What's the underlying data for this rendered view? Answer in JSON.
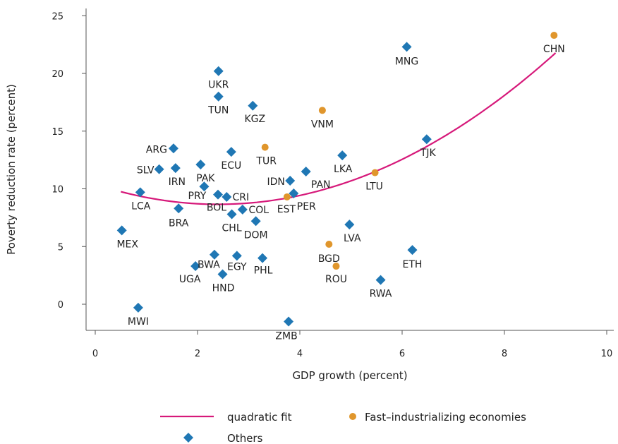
{
  "chart_data": {
    "type": "scatter",
    "xlabel": "GDP growth (percent)",
    "ylabel": "Poverty reduction rate (percent)",
    "xlim": [
      -0.2,
      10.1
    ],
    "ylim": [
      -2.2,
      25.5
    ],
    "xticks": [
      0,
      2,
      4,
      6,
      8,
      10
    ],
    "yticks": [
      0,
      5,
      10,
      15,
      20,
      25
    ],
    "grid": false,
    "legend_position": "bottom",
    "colors": {
      "fit": "#d6197a",
      "fast": "#e0962c",
      "others": "#1f77b4"
    },
    "fit": {
      "name": "quadratic fit",
      "coefficients": {
        "a": 0.3015,
        "b": -1.45,
        "c": 10.4
      },
      "x_range": [
        0.5,
        9.0
      ]
    },
    "series": [
      {
        "name": "Fast–industrializing economies",
        "marker": "circle",
        "points": [
          {
            "label": "CHN",
            "x": 8.97,
            "y": 23.3
          },
          {
            "label": "VNM",
            "x": 4.44,
            "y": 16.8
          },
          {
            "label": "TUR",
            "x": 3.32,
            "y": 13.6
          },
          {
            "label": "LTU",
            "x": 5.47,
            "y": 11.4
          },
          {
            "label": "EST",
            "x": 3.75,
            "y": 9.3
          },
          {
            "label": "BGD",
            "x": 4.57,
            "y": 5.2
          },
          {
            "label": "ROU",
            "x": 4.71,
            "y": 3.3
          }
        ]
      },
      {
        "name": "Others",
        "marker": "diamond",
        "points": [
          {
            "label": "MNG",
            "x": 6.09,
            "y": 22.3
          },
          {
            "label": "UKR",
            "x": 2.41,
            "y": 20.2
          },
          {
            "label": "TUN",
            "x": 2.41,
            "y": 18.0
          },
          {
            "label": "KGZ",
            "x": 3.08,
            "y": 17.2
          },
          {
            "label": "TJK",
            "x": 6.48,
            "y": 14.3
          },
          {
            "label": "ARG",
            "x": 1.53,
            "y": 13.5
          },
          {
            "label": "ECU",
            "x": 2.66,
            "y": 13.2
          },
          {
            "label": "LKA",
            "x": 4.83,
            "y": 12.9
          },
          {
            "label": "PAK",
            "x": 2.06,
            "y": 12.1
          },
          {
            "label": "SLV",
            "x": 1.25,
            "y": 11.7
          },
          {
            "label": "IRN",
            "x": 1.57,
            "y": 11.8
          },
          {
            "label": "PAN",
            "x": 4.12,
            "y": 11.5
          },
          {
            "label": "IDN",
            "x": 3.81,
            "y": 10.7
          },
          {
            "label": "PRY",
            "x": 2.13,
            "y": 10.2
          },
          {
            "label": "LCA",
            "x": 0.88,
            "y": 9.7
          },
          {
            "label": "PER",
            "x": 3.88,
            "y": 9.6
          },
          {
            "label": "BOL",
            "x": 2.4,
            "y": 9.5
          },
          {
            "label": "CRI",
            "x": 2.57,
            "y": 9.3
          },
          {
            "label": "BRA",
            "x": 1.63,
            "y": 8.3
          },
          {
            "label": "COL",
            "x": 2.88,
            "y": 8.2
          },
          {
            "label": "CHL",
            "x": 2.67,
            "y": 7.8
          },
          {
            "label": "DOM",
            "x": 3.14,
            "y": 7.2
          },
          {
            "label": "LVA",
            "x": 4.97,
            "y": 6.9
          },
          {
            "label": "MEX",
            "x": 0.52,
            "y": 6.4
          },
          {
            "label": "ETH",
            "x": 6.2,
            "y": 4.7
          },
          {
            "label": "BWA",
            "x": 2.33,
            "y": 4.3
          },
          {
            "label": "EGY",
            "x": 2.77,
            "y": 4.2
          },
          {
            "label": "PHL",
            "x": 3.27,
            "y": 4.0
          },
          {
            "label": "UGA",
            "x": 1.96,
            "y": 3.3
          },
          {
            "label": "HND",
            "x": 2.49,
            "y": 2.6
          },
          {
            "label": "RWA",
            "x": 5.58,
            "y": 2.1
          },
          {
            "label": "MWI",
            "x": 0.84,
            "y": -0.3
          },
          {
            "label": "ZMB",
            "x": 3.78,
            "y": -1.5
          }
        ]
      }
    ]
  },
  "legend": {
    "fit_label": "quadratic fit",
    "fast_label": "Fast–industrializing economies",
    "others_label": "Others"
  }
}
